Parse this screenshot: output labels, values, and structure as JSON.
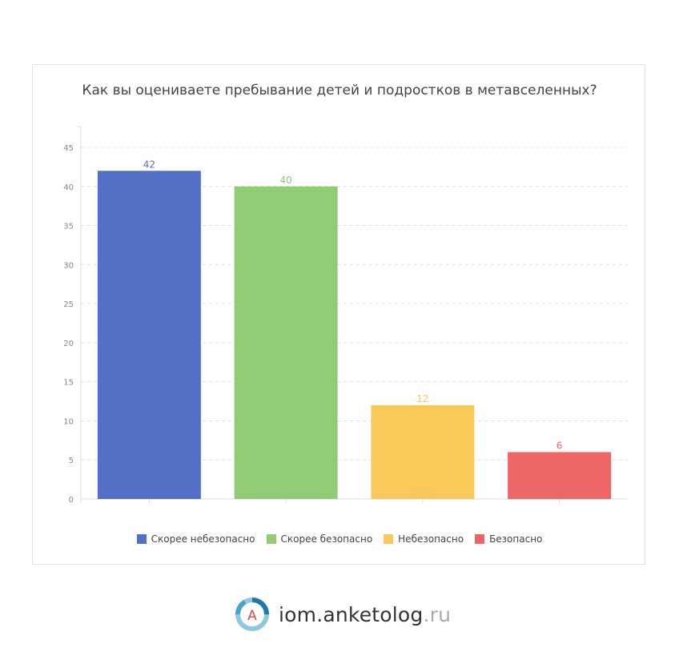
{
  "chart_data": {
    "type": "bar",
    "title": "Как вы оцениваете пребывание детей и подростков в метавселенных?",
    "categories": [
      "Скорее небезопасно",
      "Скорее безопасно",
      "Небезопасно",
      "Безопасно"
    ],
    "values": [
      42,
      40,
      12,
      6
    ],
    "colors": [
      "#5470c6",
      "#91cc75",
      "#fac858",
      "#ee6666"
    ],
    "ylim": [
      0,
      45
    ],
    "yticks": [
      0,
      5,
      10,
      15,
      20,
      25,
      30,
      35,
      40,
      45
    ],
    "grid": true,
    "legend_position": "bottom"
  },
  "brand": {
    "name": "iom.anketolog",
    "tld": ".ru",
    "logo_letter": "A",
    "logo_icon": "anketolog-logo-icon"
  }
}
